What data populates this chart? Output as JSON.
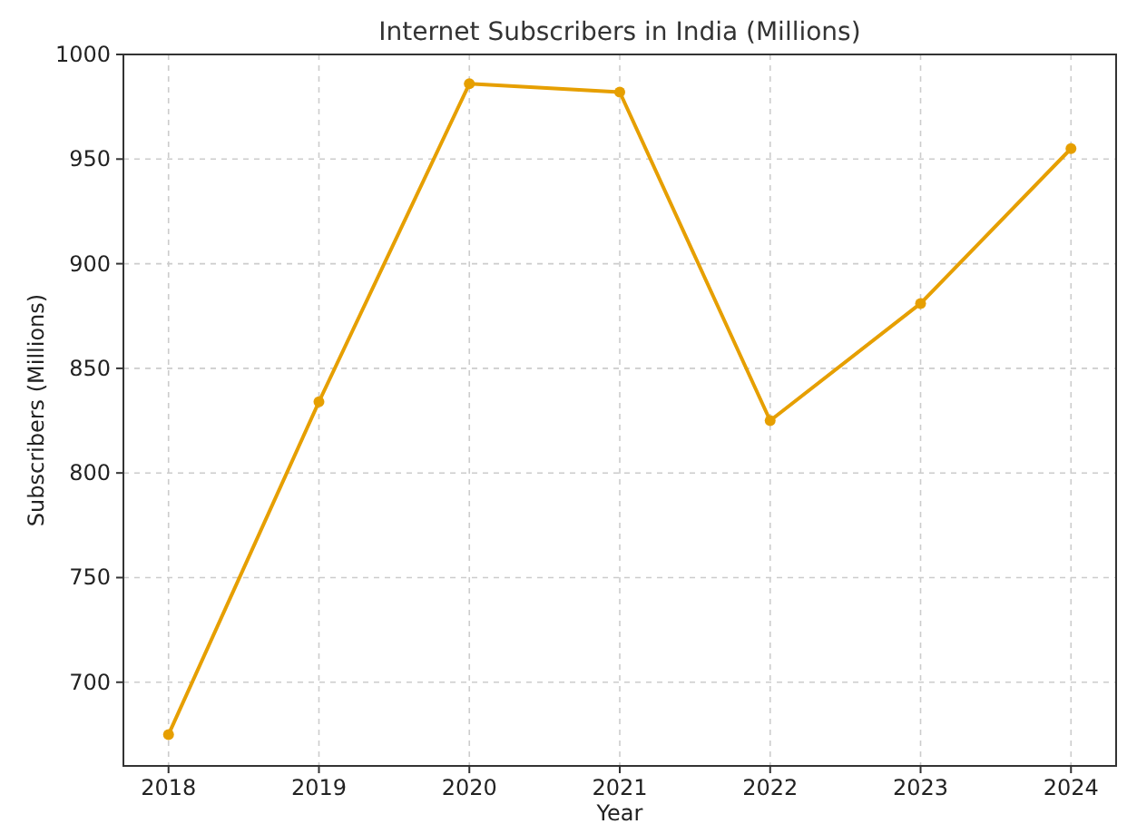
{
  "chart_data": {
    "type": "line",
    "title": "Internet Subscribers in India (Millions)",
    "xlabel": "Year",
    "ylabel": "Subscribers (Millions)",
    "x": [
      2018,
      2019,
      2020,
      2021,
      2022,
      2023,
      2024
    ],
    "series": [
      {
        "color": "#e69f00",
        "values": [
          675,
          834,
          986,
          982,
          825,
          881,
          955
        ]
      }
    ],
    "xlim": [
      2017.7,
      2024.3
    ],
    "xticks": [
      2018,
      2019,
      2020,
      2021,
      2022,
      2023,
      2024
    ],
    "ylim": [
      660,
      1000
    ],
    "yticks": [
      700,
      750,
      800,
      850,
      900,
      950,
      1000
    ],
    "grid": true,
    "marker": "circle",
    "line_style": "solid"
  }
}
